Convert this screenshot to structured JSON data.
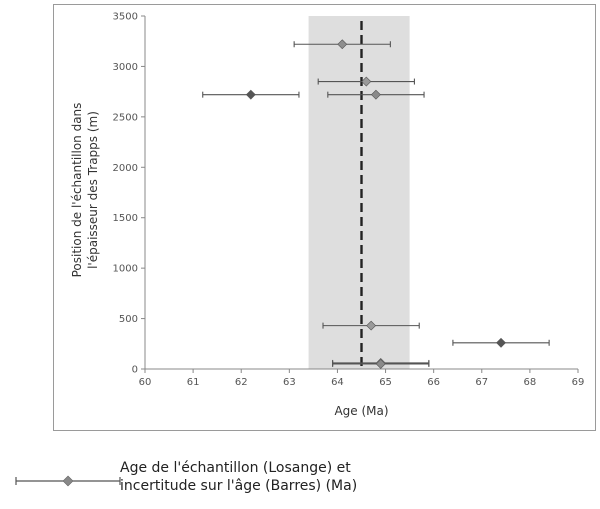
{
  "chart_data": {
    "type": "scatter",
    "xlabel": "Age (Ma)",
    "ylabel_lines": [
      "Position de l'échantillon dans",
      "l'épaisseur des Trapps (m)"
    ],
    "xlim": [
      60,
      69
    ],
    "ylim": [
      0,
      3500
    ],
    "xticks": [
      60,
      61,
      62,
      63,
      64,
      65,
      66,
      67,
      68,
      69
    ],
    "yticks": [
      0,
      500,
      1000,
      1500,
      2000,
      2500,
      3000,
      3500
    ],
    "shaded_band": [
      63.4,
      65.5
    ],
    "dashed_line_x": 64.5,
    "grid": false,
    "legend_position": "bottom-left",
    "series": [
      {
        "marker": "diamond",
        "points": [
          {
            "x": 64.1,
            "y": 3220,
            "xerr": 1.0,
            "color": "#8f8f8f"
          },
          {
            "x": 64.6,
            "y": 2850,
            "xerr": 1.0,
            "color": "#9a9a9a"
          },
          {
            "x": 64.8,
            "y": 2720,
            "xerr": 1.0,
            "color": "#8a8a8a"
          },
          {
            "x": 62.2,
            "y": 2720,
            "xerr": 1.0,
            "color": "#555555"
          },
          {
            "x": 64.7,
            "y": 430,
            "xerr": 1.0,
            "color": "#9a9a9a"
          },
          {
            "x": 67.4,
            "y": 260,
            "xerr": 1.0,
            "color": "#555555"
          },
          {
            "x": 64.9,
            "y": 60,
            "xerr": 1.0,
            "color": "#9a9a9a"
          },
          {
            "x": 64.9,
            "y": 50,
            "xerr": 1.0,
            "color": "#8a8a8a"
          }
        ]
      }
    ]
  },
  "legend": {
    "line1": "Age de l'échantillon (Losange) et",
    "line2": "incertitude sur l'âge (Barres) (Ma)"
  },
  "colors": {
    "band": "#dedede",
    "dashed_line": "#222222",
    "axis": "#888888",
    "errorbar": "#555555"
  }
}
